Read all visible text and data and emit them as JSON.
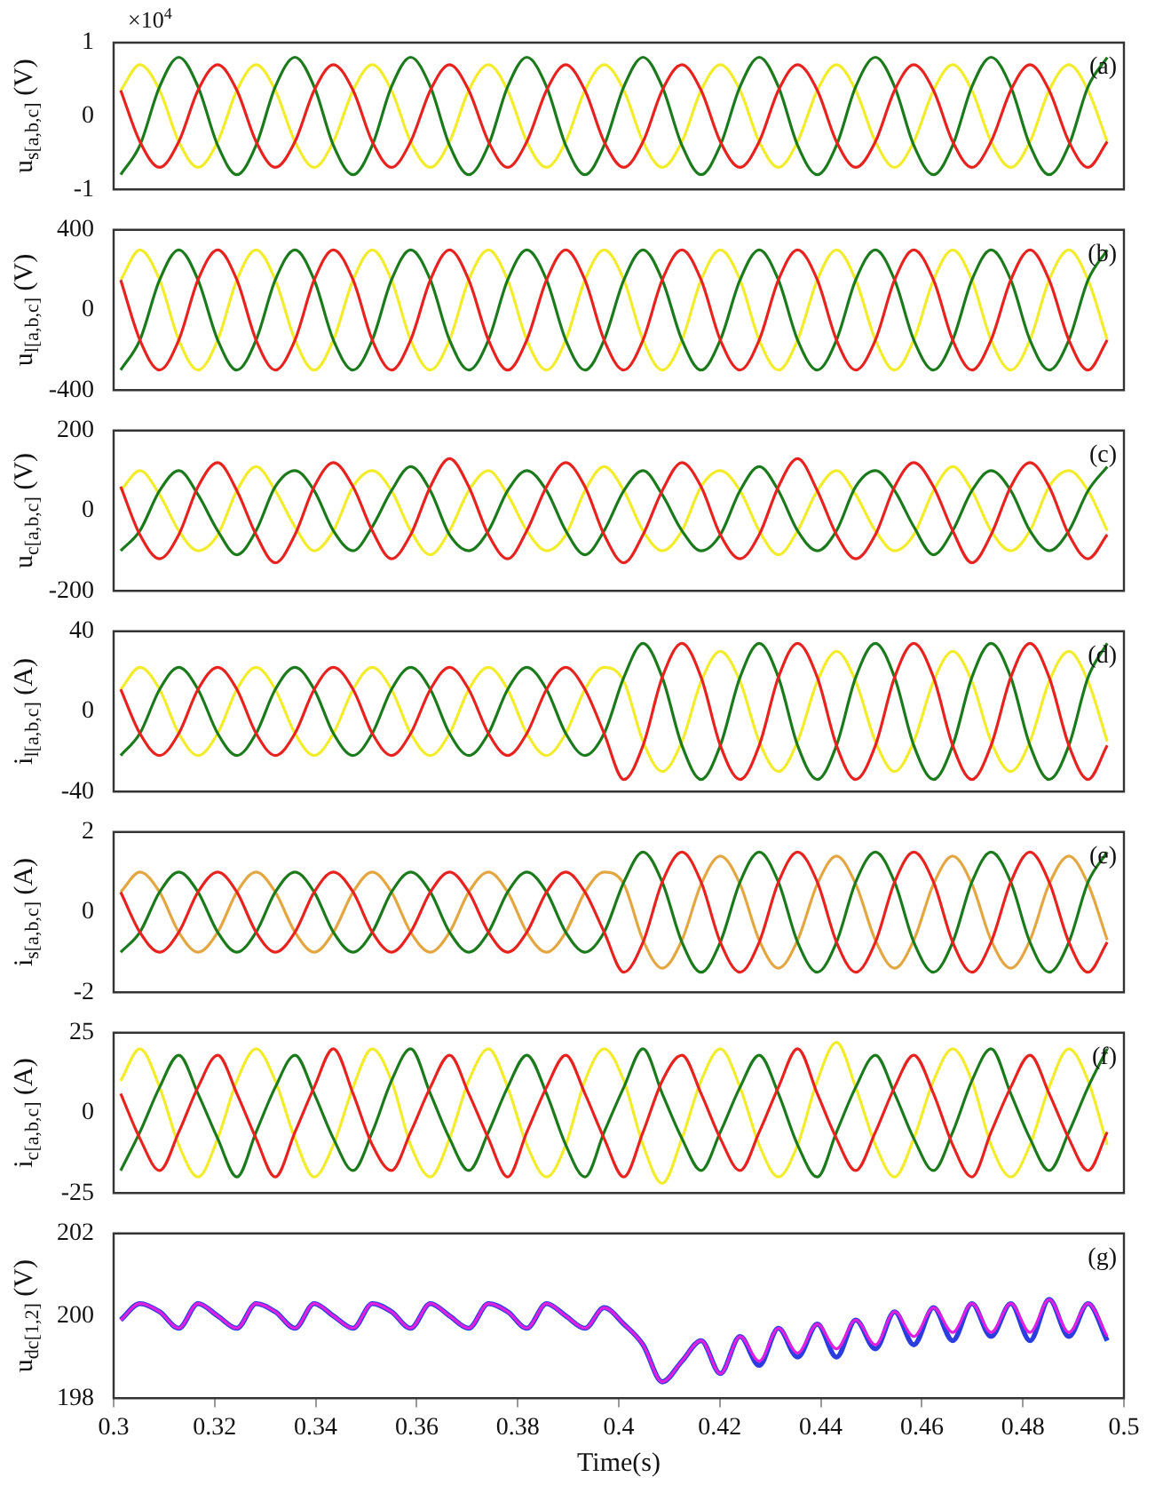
{
  "chart_data": [
    {
      "type": "line",
      "ylabel": "u$_{s[a,b,c]}$ (V)",
      "annotations": [
        "(a)",
        "×10$^{4}$"
      ],
      "tick_labels": "y",
      "xlim": [
        0.3,
        0.5
      ],
      "xticks": [
        0.3,
        0.32,
        0.34,
        0.36,
        0.38,
        0.4,
        0.42,
        0.44,
        0.46,
        0.48,
        0.5
      ],
      "ylim": [
        -1,
        1
      ],
      "yticks": [
        -1,
        0,
        1
      ],
      "x": [
        0.3014,
        0.3052,
        0.3091,
        0.3129,
        0.3167,
        0.3206,
        0.3244,
        0.3282,
        0.332,
        0.3359,
        0.3397,
        0.3435,
        0.3474,
        0.3512,
        0.355,
        0.3588,
        0.3627,
        0.3665,
        0.3703,
        0.3742,
        0.378,
        0.3818,
        0.3857,
        0.3895,
        0.3933,
        0.3971,
        0.401,
        0.4048,
        0.4086,
        0.4125,
        0.4163,
        0.4201,
        0.424,
        0.4278,
        0.4316,
        0.4354,
        0.4393,
        0.4431,
        0.4469,
        0.4508,
        0.4546,
        0.4584,
        0.4623,
        0.4661,
        0.4699,
        0.4737,
        0.4776,
        0.4814,
        0.4852,
        0.4891,
        0.4929,
        0.4967
      ],
      "series": [
        {
          "color": "#f2ec2a",
          "values": [
            0.35,
            0.7,
            0.35,
            -0.35,
            -0.7,
            -0.35,
            0.35,
            0.7,
            0.35,
            -0.35,
            -0.7,
            -0.35,
            0.35,
            0.7,
            0.35,
            -0.35,
            -0.7,
            -0.35,
            0.35,
            0.7,
            0.35,
            -0.35,
            -0.7,
            -0.35,
            0.35,
            0.7,
            0.35,
            -0.35,
            -0.7,
            -0.35,
            0.35,
            0.7,
            0.35,
            -0.35,
            -0.7,
            -0.35,
            0.35,
            0.7,
            0.35,
            -0.35,
            -0.7,
            -0.35,
            0.35,
            0.7,
            0.35,
            -0.35,
            -0.7,
            -0.35,
            0.35,
            0.7,
            0.35,
            -0.35
          ]
        },
        {
          "color": "#1b7a1b",
          "values": [
            -0.8,
            -0.4,
            0.4,
            0.8,
            0.4,
            -0.4,
            -0.8,
            -0.4,
            0.4,
            0.8,
            0.4,
            -0.4,
            -0.8,
            -0.4,
            0.4,
            0.8,
            0.4,
            -0.4,
            -0.8,
            -0.4,
            0.4,
            0.8,
            0.4,
            -0.4,
            -0.8,
            -0.4,
            0.4,
            0.8,
            0.4,
            -0.4,
            -0.8,
            -0.4,
            0.4,
            0.8,
            0.4,
            -0.4,
            -0.8,
            -0.4,
            0.4,
            0.8,
            0.4,
            -0.4,
            -0.8,
            -0.4,
            0.4,
            0.8,
            0.4,
            -0.4,
            -0.8,
            -0.4,
            0.4,
            0.8
          ]
        },
        {
          "color": "#e8221e",
          "values": [
            0.35,
            -0.35,
            -0.7,
            -0.35,
            0.35,
            0.7,
            0.35,
            -0.35,
            -0.7,
            -0.35,
            0.35,
            0.7,
            0.35,
            -0.35,
            -0.7,
            -0.35,
            0.35,
            0.7,
            0.35,
            -0.35,
            -0.7,
            -0.35,
            0.35,
            0.7,
            0.35,
            -0.35,
            -0.7,
            -0.35,
            0.35,
            0.7,
            0.35,
            -0.35,
            -0.7,
            -0.35,
            0.35,
            0.7,
            0.35,
            -0.35,
            -0.7,
            -0.35,
            0.35,
            0.7,
            0.35,
            -0.35,
            -0.7,
            -0.35,
            0.35,
            0.7,
            0.35,
            -0.35,
            -0.7,
            -0.35
          ]
        }
      ]
    },
    {
      "type": "line",
      "ylabel": "u$_{l[a,b,c]}$ (V)",
      "annotations": [
        "(b)"
      ],
      "tick_labels": "y",
      "xlim": [
        0.3,
        0.5
      ],
      "xticks": [
        0.3,
        0.32,
        0.34,
        0.36,
        0.38,
        0.4,
        0.42,
        0.44,
        0.46,
        0.48,
        0.5
      ],
      "ylim": [
        -400,
        400
      ],
      "yticks": [
        -400,
        0,
        400
      ],
      "x": [
        0.3014,
        0.3052,
        0.3091,
        0.3129,
        0.3167,
        0.3206,
        0.3244,
        0.3282,
        0.332,
        0.3359,
        0.3397,
        0.3435,
        0.3474,
        0.3512,
        0.355,
        0.3588,
        0.3627,
        0.3665,
        0.3703,
        0.3742,
        0.378,
        0.3818,
        0.3857,
        0.3895,
        0.3933,
        0.3971,
        0.401,
        0.4048,
        0.4086,
        0.4125,
        0.4163,
        0.4201,
        0.424,
        0.4278,
        0.4316,
        0.4354,
        0.4393,
        0.4431,
        0.4469,
        0.4508,
        0.4546,
        0.4584,
        0.4623,
        0.4661,
        0.4699,
        0.4737,
        0.4776,
        0.4814,
        0.4852,
        0.4891,
        0.4929,
        0.4967
      ],
      "series": [
        {
          "color": "#f2ec2a",
          "values": [
            150,
            300,
            150,
            -150,
            -300,
            -150,
            150,
            300,
            150,
            -150,
            -300,
            -150,
            150,
            300,
            150,
            -150,
            -300,
            -150,
            150,
            300,
            150,
            -150,
            -300,
            -150,
            150,
            300,
            150,
            -150,
            -300,
            -150,
            150,
            300,
            150,
            -150,
            -300,
            -150,
            150,
            300,
            150,
            -150,
            -300,
            -150,
            150,
            300,
            150,
            -150,
            -300,
            -150,
            150,
            300,
            150,
            -150
          ]
        },
        {
          "color": "#1b7a1b",
          "values": [
            -300,
            -150,
            150,
            300,
            150,
            -150,
            -300,
            -150,
            150,
            300,
            150,
            -150,
            -300,
            -150,
            150,
            300,
            150,
            -150,
            -300,
            -150,
            150,
            300,
            150,
            -150,
            -300,
            -150,
            150,
            300,
            150,
            -150,
            -300,
            -150,
            150,
            300,
            150,
            -150,
            -300,
            -150,
            150,
            300,
            150,
            -150,
            -300,
            -150,
            150,
            300,
            150,
            -150,
            -300,
            -150,
            150,
            300
          ]
        },
        {
          "color": "#e8221e",
          "values": [
            150,
            -150,
            -300,
            -150,
            150,
            300,
            150,
            -150,
            -300,
            -150,
            150,
            300,
            150,
            -150,
            -300,
            -150,
            150,
            300,
            150,
            -150,
            -300,
            -150,
            150,
            300,
            150,
            -150,
            -300,
            -150,
            150,
            300,
            150,
            -150,
            -300,
            -150,
            150,
            300,
            150,
            -150,
            -300,
            -150,
            150,
            300,
            150,
            -150,
            -300,
            -150,
            150,
            300,
            150,
            -150,
            -300,
            -150
          ]
        }
      ]
    },
    {
      "type": "line",
      "ylabel": "u$_{c[a,b,c]}$ (V)",
      "annotations": [
        "(c)"
      ],
      "tick_labels": "y",
      "xlim": [
        0.3,
        0.5
      ],
      "xticks": [
        0.3,
        0.32,
        0.34,
        0.36,
        0.38,
        0.4,
        0.42,
        0.44,
        0.46,
        0.48,
        0.5
      ],
      "ylim": [
        -200,
        200
      ],
      "yticks": [
        -200,
        0,
        200
      ],
      "x": [
        0.3014,
        0.3052,
        0.3091,
        0.3129,
        0.3167,
        0.3206,
        0.3244,
        0.3282,
        0.332,
        0.3359,
        0.3397,
        0.3435,
        0.3474,
        0.3512,
        0.355,
        0.3588,
        0.3627,
        0.3665,
        0.3703,
        0.3742,
        0.378,
        0.3818,
        0.3857,
        0.3895,
        0.3933,
        0.3971,
        0.401,
        0.4048,
        0.4086,
        0.4125,
        0.4163,
        0.4201,
        0.424,
        0.4278,
        0.4316,
        0.4354,
        0.4393,
        0.4431,
        0.4469,
        0.4508,
        0.4546,
        0.4584,
        0.4623,
        0.4661,
        0.4699,
        0.4737,
        0.4776,
        0.4814,
        0.4852,
        0.4891,
        0.4929,
        0.4967
      ],
      "series": [
        {
          "color": "#f2ec2a",
          "values": [
            50,
            100,
            40,
            -50,
            -100,
            -60,
            50,
            110,
            50,
            -40,
            -100,
            -50,
            60,
            100,
            50,
            -50,
            -110,
            -50,
            50,
            100,
            40,
            -50,
            -100,
            -60,
            50,
            110,
            50,
            -50,
            -100,
            -50,
            60,
            100,
            50,
            -50,
            -110,
            -50,
            50,
            100,
            40,
            -50,
            -100,
            -60,
            50,
            110,
            50,
            -50,
            -100,
            -50,
            60,
            100,
            50,
            -50
          ]
        },
        {
          "color": "#1b7a1b",
          "values": [
            -100,
            -50,
            50,
            100,
            40,
            -50,
            -110,
            -50,
            60,
            100,
            50,
            -50,
            -100,
            -40,
            50,
            110,
            50,
            -60,
            -100,
            -50,
            50,
            100,
            50,
            -50,
            -110,
            -50,
            50,
            100,
            40,
            -50,
            -100,
            -60,
            50,
            110,
            50,
            -50,
            -100,
            -50,
            60,
            100,
            50,
            -40,
            -110,
            -50,
            50,
            100,
            50,
            -50,
            -100,
            -50,
            50,
            110
          ]
        },
        {
          "color": "#e8221e",
          "values": [
            60,
            -60,
            -120,
            -60,
            60,
            120,
            50,
            -60,
            -130,
            -60,
            60,
            120,
            60,
            -50,
            -120,
            -60,
            60,
            130,
            60,
            -60,
            -120,
            -50,
            60,
            120,
            60,
            -60,
            -130,
            -60,
            50,
            120,
            60,
            -60,
            -120,
            -60,
            60,
            130,
            50,
            -60,
            -120,
            -60,
            60,
            120,
            60,
            -50,
            -130,
            -60,
            60,
            120,
            60,
            -60,
            -120,
            -60
          ]
        }
      ]
    },
    {
      "type": "line",
      "ylabel": "i$_{l[a,b,c]}$ (A)",
      "annotations": [
        "(d)"
      ],
      "tick_labels": "y",
      "xlim": [
        0.3,
        0.5
      ],
      "xticks": [
        0.3,
        0.32,
        0.34,
        0.36,
        0.38,
        0.4,
        0.42,
        0.44,
        0.46,
        0.48,
        0.5
      ],
      "ylim": [
        -40,
        40
      ],
      "yticks": [
        -40,
        0,
        40
      ],
      "x": [
        0.3014,
        0.3052,
        0.3091,
        0.3129,
        0.3167,
        0.3206,
        0.3244,
        0.3282,
        0.332,
        0.3359,
        0.3397,
        0.3435,
        0.3474,
        0.3512,
        0.355,
        0.3588,
        0.3627,
        0.3665,
        0.3703,
        0.3742,
        0.378,
        0.3818,
        0.3857,
        0.3895,
        0.3933,
        0.3971,
        0.401,
        0.4048,
        0.4086,
        0.4125,
        0.4163,
        0.4201,
        0.424,
        0.4278,
        0.4316,
        0.4354,
        0.4393,
        0.4431,
        0.4469,
        0.4508,
        0.4546,
        0.4584,
        0.4623,
        0.4661,
        0.4699,
        0.4737,
        0.4776,
        0.4814,
        0.4852,
        0.4891,
        0.4929,
        0.4967
      ],
      "series": [
        {
          "color": "#f2ec2a",
          "values": [
            11,
            22,
            11,
            -11,
            -22,
            -11,
            11,
            22,
            11,
            -11,
            -22,
            -11,
            11,
            22,
            11,
            -11,
            -22,
            -11,
            11,
            22,
            11,
            -11,
            -22,
            -11,
            11,
            22,
            15,
            -15,
            -30,
            -15,
            15,
            30,
            15,
            -15,
            -30,
            -15,
            15,
            30,
            15,
            -15,
            -30,
            -15,
            15,
            30,
            15,
            -15,
            -30,
            -15,
            15,
            30,
            15,
            -15
          ]
        },
        {
          "color": "#1b7a1b",
          "values": [
            -22,
            -11,
            11,
            22,
            11,
            -11,
            -22,
            -11,
            11,
            22,
            11,
            -11,
            -22,
            -11,
            11,
            22,
            11,
            -11,
            -22,
            -11,
            11,
            22,
            11,
            -11,
            -22,
            -11,
            17,
            34,
            17,
            -17,
            -34,
            -17,
            17,
            34,
            17,
            -17,
            -34,
            -17,
            17,
            34,
            17,
            -17,
            -34,
            -17,
            17,
            34,
            17,
            -17,
            -34,
            -17,
            17,
            34
          ]
        },
        {
          "color": "#e8221e",
          "values": [
            11,
            -11,
            -22,
            -11,
            11,
            22,
            11,
            -11,
            -22,
            -11,
            11,
            22,
            11,
            -11,
            -22,
            -11,
            11,
            22,
            11,
            -11,
            -22,
            -11,
            11,
            22,
            11,
            -11,
            -34,
            -17,
            17,
            34,
            17,
            -17,
            -34,
            -17,
            17,
            34,
            17,
            -17,
            -34,
            -17,
            17,
            34,
            17,
            -17,
            -34,
            -17,
            17,
            34,
            17,
            -17,
            -34,
            -17
          ]
        }
      ]
    },
    {
      "type": "line",
      "ylabel": "i$_{s[a,b,c]}$ (A)",
      "annotations": [
        "(e)"
      ],
      "tick_labels": "y",
      "xlim": [
        0.3,
        0.5
      ],
      "xticks": [
        0.3,
        0.32,
        0.34,
        0.36,
        0.38,
        0.4,
        0.42,
        0.44,
        0.46,
        0.48,
        0.5
      ],
      "ylim": [
        -2,
        2
      ],
      "yticks": [
        -2,
        0,
        2
      ],
      "x": [
        0.3014,
        0.3052,
        0.3091,
        0.3129,
        0.3167,
        0.3206,
        0.3244,
        0.3282,
        0.332,
        0.3359,
        0.3397,
        0.3435,
        0.3474,
        0.3512,
        0.355,
        0.3588,
        0.3627,
        0.3665,
        0.3703,
        0.3742,
        0.378,
        0.3818,
        0.3857,
        0.3895,
        0.3933,
        0.3971,
        0.401,
        0.4048,
        0.4086,
        0.4125,
        0.4163,
        0.4201,
        0.424,
        0.4278,
        0.4316,
        0.4354,
        0.4393,
        0.4431,
        0.4469,
        0.4508,
        0.4546,
        0.4584,
        0.4623,
        0.4661,
        0.4699,
        0.4737,
        0.4776,
        0.4814,
        0.4852,
        0.4891,
        0.4929,
        0.4967
      ],
      "series": [
        {
          "color": "#e3a640",
          "values": [
            0.5,
            1,
            0.5,
            -0.5,
            -1,
            -0.5,
            0.5,
            1,
            0.5,
            -0.5,
            -1,
            -0.5,
            0.5,
            1,
            0.5,
            -0.5,
            -1,
            -0.5,
            0.5,
            1,
            0.5,
            -0.5,
            -1,
            -0.5,
            0.5,
            1,
            0.7,
            -0.7,
            -1.4,
            -0.7,
            0.7,
            1.4,
            0.7,
            -0.7,
            -1.4,
            -0.7,
            0.7,
            1.4,
            0.7,
            -0.7,
            -1.4,
            -0.7,
            0.7,
            1.4,
            0.7,
            -0.7,
            -1.4,
            -0.7,
            0.7,
            1.4,
            0.7,
            -0.7
          ]
        },
        {
          "color": "#1b7a1b",
          "values": [
            -1,
            -0.5,
            0.5,
            1,
            0.5,
            -0.5,
            -1,
            -0.5,
            0.5,
            1,
            0.5,
            -0.5,
            -1,
            -0.5,
            0.5,
            1,
            0.5,
            -0.5,
            -1,
            -0.5,
            0.5,
            1,
            0.5,
            -0.5,
            -1,
            -0.5,
            0.75,
            1.5,
            0.75,
            -0.75,
            -1.5,
            -0.75,
            0.75,
            1.5,
            0.75,
            -0.75,
            -1.5,
            -0.75,
            0.75,
            1.5,
            0.75,
            -0.75,
            -1.5,
            -0.75,
            0.75,
            1.5,
            0.75,
            -0.75,
            -1.5,
            -0.75,
            0.75,
            1.5
          ]
        },
        {
          "color": "#e8221e",
          "values": [
            0.5,
            -0.5,
            -1,
            -0.5,
            0.5,
            1,
            0.5,
            -0.5,
            -1,
            -0.5,
            0.5,
            1,
            0.5,
            -0.5,
            -1,
            -0.5,
            0.5,
            1,
            0.5,
            -0.5,
            -1,
            -0.5,
            0.5,
            1,
            0.5,
            -0.5,
            -1.5,
            -0.75,
            0.75,
            1.5,
            0.75,
            -0.75,
            -1.5,
            -0.75,
            0.75,
            1.5,
            0.75,
            -0.75,
            -1.5,
            -0.75,
            0.75,
            1.5,
            0.75,
            -0.75,
            -1.5,
            -0.75,
            0.75,
            1.5,
            0.75,
            -0.75,
            -1.5,
            -0.75
          ]
        }
      ]
    },
    {
      "type": "line",
      "ylabel": "i$_{c[a,b,c]}$ (A)",
      "annotations": [
        "(f)"
      ],
      "tick_labels": "y",
      "xlim": [
        0.3,
        0.5
      ],
      "xticks": [
        0.3,
        0.32,
        0.34,
        0.36,
        0.38,
        0.4,
        0.42,
        0.44,
        0.46,
        0.48,
        0.5
      ],
      "ylim": [
        -25,
        25
      ],
      "yticks": [
        -25,
        0,
        25
      ],
      "x": [
        0.3014,
        0.3052,
        0.3091,
        0.3129,
        0.3167,
        0.3206,
        0.3244,
        0.3282,
        0.332,
        0.3359,
        0.3397,
        0.3435,
        0.3474,
        0.3512,
        0.355,
        0.3588,
        0.3627,
        0.3665,
        0.3703,
        0.3742,
        0.378,
        0.3818,
        0.3857,
        0.3895,
        0.3933,
        0.3971,
        0.401,
        0.4048,
        0.4086,
        0.4125,
        0.4163,
        0.4201,
        0.424,
        0.4278,
        0.4316,
        0.4354,
        0.4393,
        0.4431,
        0.4469,
        0.4508,
        0.4546,
        0.4584,
        0.4623,
        0.4661,
        0.4699,
        0.4737,
        0.4776,
        0.4814,
        0.4852,
        0.4891,
        0.4929,
        0.4967
      ],
      "series": [
        {
          "color": "#f2ec2a",
          "values": [
            10,
            20,
            8,
            -10,
            -20,
            -8,
            10,
            20,
            10,
            -8,
            -20,
            -10,
            8,
            20,
            10,
            -10,
            -20,
            -8,
            10,
            20,
            8,
            -10,
            -20,
            -10,
            10,
            20,
            10,
            -10,
            -22,
            -8,
            10,
            20,
            8,
            -10,
            -20,
            -10,
            10,
            22,
            8,
            -10,
            -20,
            -8,
            10,
            20,
            10,
            -10,
            -20,
            -10,
            8,
            20,
            10,
            -10
          ]
        },
        {
          "color": "#1b7a1b",
          "values": [
            -18,
            -6,
            8,
            18,
            6,
            -8,
            -20,
            -6,
            8,
            18,
            6,
            -8,
            -18,
            -6,
            10,
            20,
            6,
            -8,
            -18,
            -6,
            8,
            18,
            6,
            -10,
            -20,
            -6,
            8,
            20,
            6,
            -8,
            -18,
            -6,
            8,
            18,
            6,
            -10,
            -20,
            -6,
            8,
            18,
            6,
            -8,
            -18,
            -6,
            10,
            20,
            6,
            -8,
            -18,
            -6,
            8,
            20
          ]
        },
        {
          "color": "#e8221e",
          "values": [
            6,
            -8,
            -18,
            -6,
            8,
            18,
            6,
            -8,
            -20,
            -6,
            8,
            20,
            6,
            -10,
            -18,
            -6,
            8,
            18,
            6,
            -8,
            -20,
            -6,
            8,
            18,
            6,
            -8,
            -20,
            -6,
            10,
            18,
            6,
            -8,
            -18,
            -6,
            8,
            20,
            6,
            -8,
            -18,
            -6,
            8,
            18,
            6,
            -10,
            -20,
            -6,
            8,
            18,
            6,
            -8,
            -18,
            -6
          ]
        }
      ]
    },
    {
      "type": "line",
      "ylabel": "u$_{dc[1,2]}$ (V)",
      "xlabel": "Time(s)",
      "annotations": [
        "(g)"
      ],
      "xlim": [
        0.3,
        0.5
      ],
      "xticks": [
        0.3,
        0.32,
        0.34,
        0.36,
        0.38,
        0.4,
        0.42,
        0.44,
        0.46,
        0.48,
        0.5
      ],
      "ylim": [
        198,
        202
      ],
      "yticks": [
        198,
        200,
        202
      ],
      "x": [
        0.3014,
        0.3052,
        0.3091,
        0.3129,
        0.3167,
        0.3206,
        0.3244,
        0.3282,
        0.332,
        0.3359,
        0.3397,
        0.3435,
        0.3474,
        0.3512,
        0.355,
        0.3588,
        0.3627,
        0.3665,
        0.3703,
        0.3742,
        0.378,
        0.3818,
        0.3857,
        0.3895,
        0.3933,
        0.3971,
        0.401,
        0.4048,
        0.4086,
        0.4125,
        0.4163,
        0.4201,
        0.424,
        0.4278,
        0.4316,
        0.4354,
        0.4393,
        0.4431,
        0.4469,
        0.4508,
        0.4546,
        0.4584,
        0.4623,
        0.4661,
        0.4699,
        0.4737,
        0.4776,
        0.4814,
        0.4852,
        0.4891,
        0.4929,
        0.4967
      ],
      "series": [
        {
          "color": "#2a3ee0",
          "values": [
            199.9,
            200.3,
            200.1,
            199.7,
            200.3,
            200.0,
            199.7,
            200.3,
            200.1,
            199.7,
            200.3,
            200.0,
            199.7,
            200.3,
            200.1,
            199.7,
            200.3,
            200.0,
            199.7,
            200.3,
            200.1,
            199.7,
            200.3,
            200.0,
            199.7,
            200.2,
            199.8,
            199.3,
            198.4,
            198.9,
            199.4,
            198.6,
            199.5,
            198.8,
            199.7,
            199.0,
            199.8,
            199.0,
            199.9,
            199.2,
            200.1,
            199.3,
            200.2,
            199.4,
            200.3,
            199.5,
            200.3,
            199.4,
            200.4,
            199.5,
            200.3,
            199.4
          ]
        },
        {
          "color": "#e020e0",
          "values": [
            199.9,
            200.3,
            200.1,
            199.7,
            200.3,
            200.0,
            199.7,
            200.3,
            200.1,
            199.7,
            200.3,
            200.0,
            199.7,
            200.3,
            200.1,
            199.7,
            200.3,
            200.0,
            199.7,
            200.3,
            200.1,
            199.7,
            200.3,
            200.0,
            199.7,
            200.2,
            199.8,
            199.3,
            198.4,
            198.9,
            199.4,
            198.6,
            199.5,
            198.9,
            199.7,
            199.1,
            199.8,
            199.2,
            199.9,
            199.3,
            200.1,
            199.5,
            200.2,
            199.6,
            200.3,
            199.6,
            200.3,
            199.6,
            200.4,
            199.6,
            200.3,
            199.5
          ]
        }
      ]
    }
  ]
}
